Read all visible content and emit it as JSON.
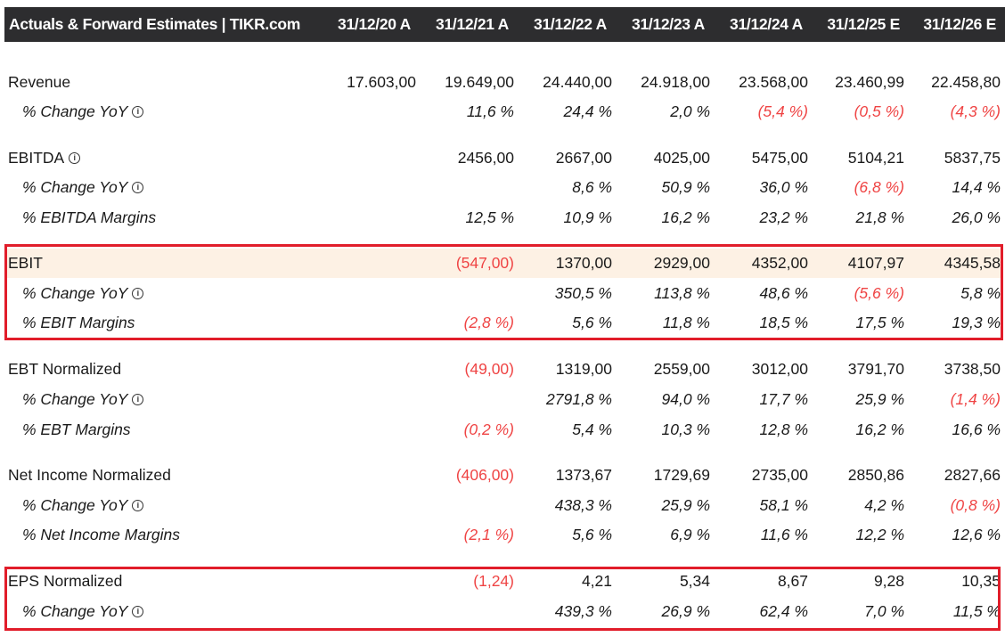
{
  "header": {
    "title": "Actuals & Forward Estimates | TIKR.com",
    "columns": [
      "31/12/20 A",
      "31/12/21 A",
      "31/12/22 A",
      "31/12/23 A",
      "31/12/24 A",
      "31/12/25 E",
      "31/12/26 E"
    ]
  },
  "colors": {
    "negative": "#ef4444",
    "highlight_box": "#e11d2a",
    "highlight_row": "#fdf1e4",
    "header_bg": "#2d2d2f"
  },
  "rows": [
    {
      "label": "Revenue",
      "type": "main",
      "info": false,
      "values": [
        "17.603,00",
        "19.649,00",
        "24.440,00",
        "24.918,00",
        "23.568,00",
        "23.460,99",
        "22.458,80"
      ]
    },
    {
      "label": "% Change YoY",
      "type": "sub",
      "info": true,
      "values": [
        "",
        "11,6 %",
        "24,4 %",
        "2,0 %",
        "(5,4 %)",
        "(0,5 %)",
        "(4,3 %)"
      ]
    },
    {
      "label": "EBITDA",
      "type": "main",
      "info": true,
      "values": [
        "",
        "2456,00",
        "2667,00",
        "4025,00",
        "5475,00",
        "5104,21",
        "5837,75"
      ]
    },
    {
      "label": "% Change YoY",
      "type": "sub",
      "info": true,
      "values": [
        "",
        "",
        "8,6 %",
        "50,9 %",
        "36,0 %",
        "(6,8 %)",
        "14,4 %"
      ]
    },
    {
      "label": "% EBITDA Margins",
      "type": "sub",
      "info": false,
      "values": [
        "",
        "12,5 %",
        "10,9 %",
        "16,2 %",
        "23,2 %",
        "21,8 %",
        "26,0 %"
      ]
    },
    {
      "label": "EBIT",
      "type": "main",
      "info": false,
      "highlight": true,
      "values": [
        "",
        "(547,00)",
        "1370,00",
        "2929,00",
        "4352,00",
        "4107,97",
        "4345,58"
      ]
    },
    {
      "label": "% Change YoY",
      "type": "sub",
      "info": true,
      "values": [
        "",
        "",
        "350,5 %",
        "113,8 %",
        "48,6 %",
        "(5,6 %)",
        "5,8 %"
      ]
    },
    {
      "label": "% EBIT Margins",
      "type": "sub",
      "info": false,
      "values": [
        "",
        "(2,8 %)",
        "5,6 %",
        "11,8 %",
        "18,5 %",
        "17,5 %",
        "19,3 %"
      ]
    },
    {
      "label": "EBT Normalized",
      "type": "main",
      "info": false,
      "values": [
        "",
        "(49,00)",
        "1319,00",
        "2559,00",
        "3012,00",
        "3791,70",
        "3738,50"
      ]
    },
    {
      "label": "% Change YoY",
      "type": "sub",
      "info": true,
      "values": [
        "",
        "",
        "2791,8 %",
        "94,0 %",
        "17,7 %",
        "25,9 %",
        "(1,4 %)"
      ]
    },
    {
      "label": "% EBT Margins",
      "type": "sub",
      "info": false,
      "values": [
        "",
        "(0,2 %)",
        "5,4 %",
        "10,3 %",
        "12,8 %",
        "16,2 %",
        "16,6 %"
      ]
    },
    {
      "label": "Net Income Normalized",
      "type": "main",
      "info": false,
      "values": [
        "",
        "(406,00)",
        "1373,67",
        "1729,69",
        "2735,00",
        "2850,86",
        "2827,66"
      ]
    },
    {
      "label": "% Change YoY",
      "type": "sub",
      "info": true,
      "values": [
        "",
        "",
        "438,3 %",
        "25,9 %",
        "58,1 %",
        "4,2 %",
        "(0,8 %)"
      ]
    },
    {
      "label": "% Net Income Margins",
      "type": "sub",
      "info": false,
      "values": [
        "",
        "(2,1 %)",
        "5,6 %",
        "6,9 %",
        "11,6 %",
        "12,2 %",
        "12,6 %"
      ]
    },
    {
      "label": "EPS Normalized",
      "type": "main",
      "info": false,
      "values": [
        "",
        "(1,24)",
        "4,21",
        "5,34",
        "8,67",
        "9,28",
        "10,35"
      ]
    },
    {
      "label": "% Change YoY",
      "type": "sub",
      "info": true,
      "values": [
        "",
        "",
        "439,3 %",
        "26,9 %",
        "62,4 %",
        "7,0 %",
        "11,5 %"
      ]
    }
  ],
  "info_icon": "info-circle-icon"
}
